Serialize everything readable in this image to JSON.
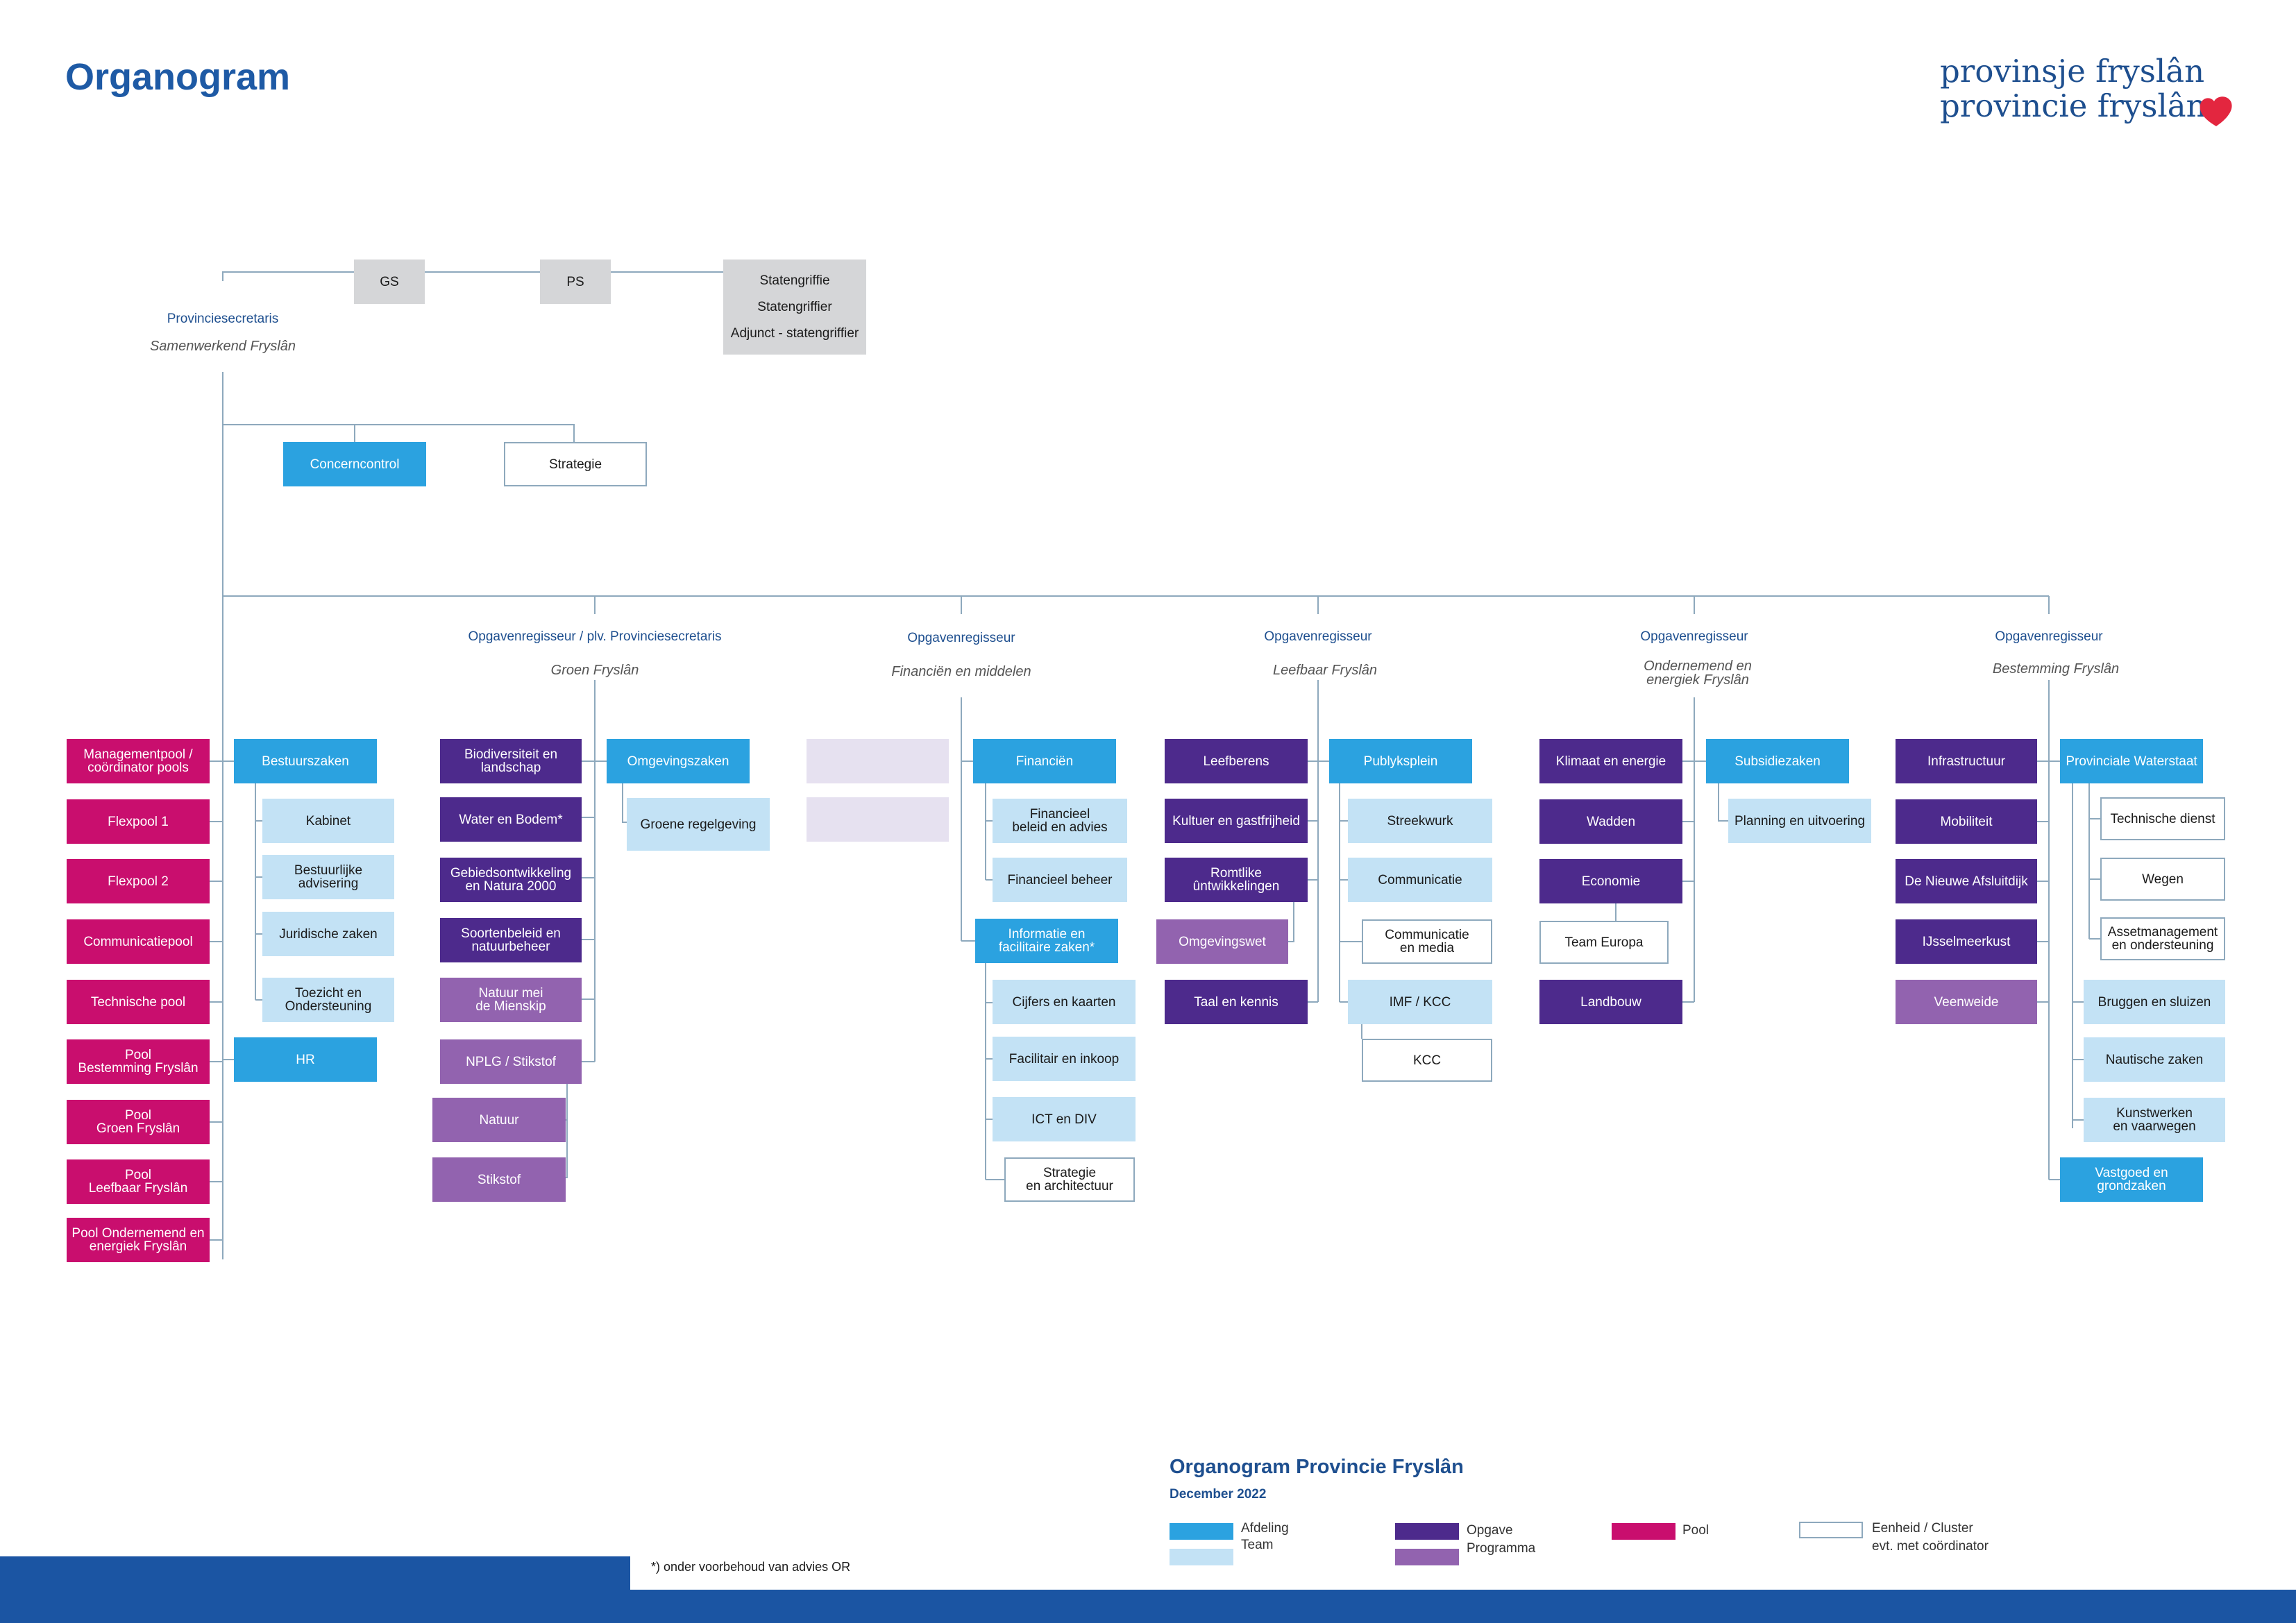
{
  "header": {
    "title": "Organogram",
    "logo_line1": "provinsje fryslân",
    "logo_line2": "provincie fryslân"
  },
  "top": {
    "gs": "GS",
    "ps": "PS",
    "griffie": "Statengriffie\nStatengriffier\nAdjunct - statengriffier"
  },
  "secretaris": {
    "role": "Provinciesecretaris",
    "name": "Samenwerkend Fryslân",
    "concerncontrol": "Concerncontrol",
    "strategie": "Strategie"
  },
  "pools": [
    "Managementpool /\ncoördinator pools",
    "Flexpool 1",
    "Flexpool 2",
    "Communicatiepool",
    "Technische pool",
    "Pool\nBestemming Fryslân",
    "Pool\nGroen Fryslân",
    "Pool\nLeefbaar Fryslân",
    "Pool Ondernemend en\nenergiek Fryslân"
  ],
  "staff": {
    "bestuurszaken": "Bestuurszaken",
    "teams": [
      "Kabinet",
      "Bestuurlijke\nadvisering",
      "Juridische zaken",
      "Toezicht en\nOndersteuning"
    ],
    "hr": "HR"
  },
  "regisseurs": [
    {
      "role": "Opgavenregisseur / plv. Provinciesecretaris",
      "name": "Groen Fryslân"
    },
    {
      "role": "Opgavenregisseur",
      "name": "Financiën en middelen"
    },
    {
      "role": "Opgavenregisseur",
      "name": "Leefbaar Fryslân"
    },
    {
      "role": "Opgavenregisseur",
      "name": "Ondernemend  en\nenergiek Fryslân"
    },
    {
      "role": "Opgavenregisseur",
      "name": "Bestemming Fryslân"
    }
  ],
  "groen": {
    "opgaven": [
      "Biodiversiteit en\nlandschap",
      "Water en Bodem*",
      "Gebiedsontwikkeling\nen Natura 2000",
      "Soortenbeleid en\nnatuurbeheer"
    ],
    "programmas": [
      "Natuur mei\nde Mienskip",
      "NPLG / Stikstof"
    ],
    "sub": [
      "Natuur",
      "Stikstof"
    ],
    "afdeling": "Omgevingszaken",
    "team": "Groene regelgeving"
  },
  "financien": {
    "afdeling": "Financiën",
    "teams": [
      "Financieel\nbeleid en advies",
      "Financieel beheer"
    ],
    "info": "Informatie en\nfacilitaire zaken*",
    "info_teams": [
      "Cijfers en kaarten",
      "Facilitair en inkoop",
      "ICT en DIV"
    ],
    "cluster": "Strategie\nen architectuur"
  },
  "leefbaar": {
    "opgaven": [
      "Leefberens",
      "Kultuer en gastfrijheid",
      "Romtlike\nûntwikkelingen",
      "Taal en kennis"
    ],
    "programma": "Omgevingswet",
    "afdeling": "Publyksplein",
    "teams": [
      "Streekwurk",
      "Communicatie",
      "IMF / KCC"
    ],
    "clusters": [
      "Communicatie\nen media",
      "KCC"
    ]
  },
  "ondernemend": {
    "opgaven": [
      "Klimaat en energie",
      "Wadden",
      "Economie",
      "Landbouw"
    ],
    "cluster": "Team Europa",
    "afdeling": "Subsidiezaken",
    "team": "Planning en uitvoering"
  },
  "bestemming": {
    "opgaven": [
      "Infrastructuur",
      "Mobiliteit",
      "De Nieuwe Afsluitdijk",
      "IJsselmeerkust"
    ],
    "programma": "Veenweide",
    "afdeling": "Provinciale Waterstaat",
    "clusters": [
      "Technische dienst",
      "Wegen",
      "Assetmanagement\nen ondersteuning"
    ],
    "teams": [
      "Bruggen en sluizen",
      "Nautische zaken",
      "Kunstwerken\nen vaarwegen"
    ],
    "vastgoed": "Vastgoed en\ngrondzaken"
  },
  "legend": {
    "title": "Organogram Provincie Fryslân",
    "date": "December 2022",
    "afdeling": "Afdeling",
    "team": "Team",
    "opgave": "Opgave",
    "programma": "Programma",
    "pool": "Pool",
    "eenheid": "Eenheid / Cluster",
    "coordinator": "evt. met coördinator"
  },
  "footnote": "*) onder voorbehoud van advies OR",
  "colors": {
    "afdeling": "#2ba2e0",
    "team": "#c3e2f5",
    "opgave": "#4d2a8c",
    "programma": "#9263af",
    "pool": "#c90e6e",
    "band": "#1b55a3",
    "line": "#8ea9bd"
  }
}
